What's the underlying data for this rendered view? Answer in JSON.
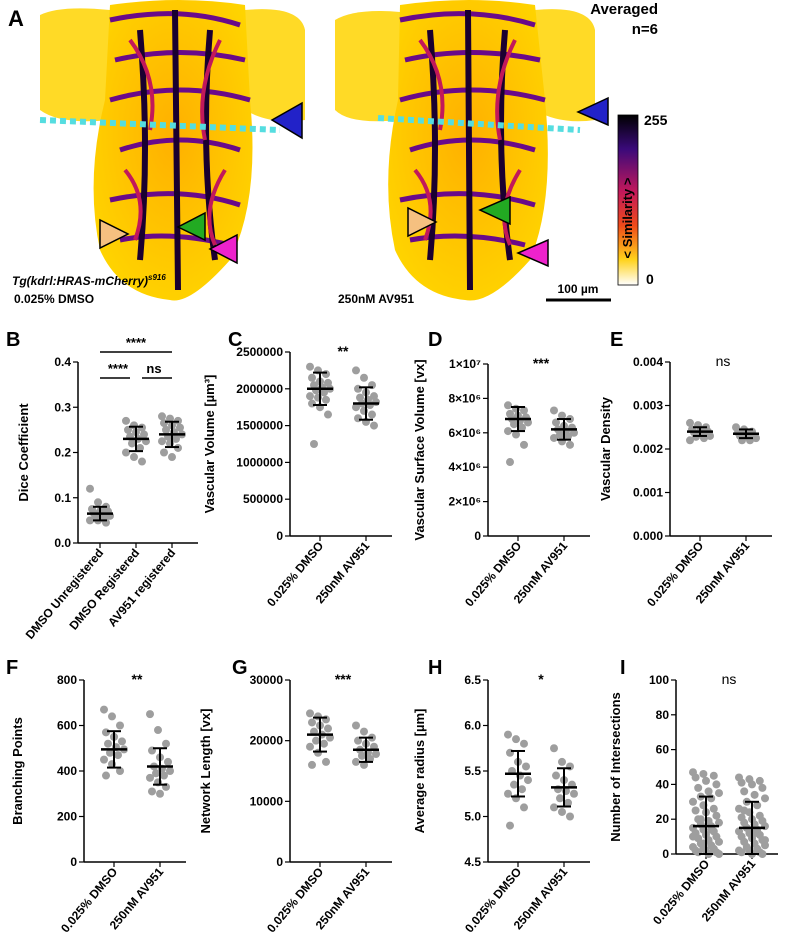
{
  "panel_a": {
    "letter": "A",
    "averaged_label": "Averaged",
    "n_label": "n=6",
    "colorbar": {
      "max": "255",
      "min": "0",
      "label": "< Similarity >"
    },
    "left_caption_line1": "Tg(kdrl:HRAS-mCherry)",
    "left_caption_sup": "s916",
    "left_caption_line2": "0.025% DMSO",
    "right_caption": "250nM AV951",
    "scalebar_label": "100 µm",
    "arrow_colors": {
      "blue": "#2222c8",
      "green": "#22aa22",
      "magenta": "#ee22cc",
      "peach": "#f5c080",
      "cyan_dash": "#55dde0"
    }
  },
  "chart_data": [
    {
      "panel": "B",
      "type": "scatter",
      "ylabel": "Dice Coefficient",
      "categories": [
        "DMSO Unregistered",
        "DMSO Registered",
        "AV951 registered"
      ],
      "ylim": [
        0,
        0.4
      ],
      "yticks": [
        "0.0",
        "0.1",
        "0.2",
        "0.3",
        "0.4"
      ],
      "means": [
        0.065,
        0.23,
        0.24
      ],
      "sd": [
        0.015,
        0.027,
        0.028
      ],
      "points": [
        [
          0.12,
          0.09,
          0.08,
          0.075,
          0.07,
          0.07,
          0.065,
          0.065,
          0.06,
          0.06,
          0.055,
          0.05,
          0.05,
          0.045
        ],
        [
          0.27,
          0.26,
          0.255,
          0.25,
          0.245,
          0.24,
          0.235,
          0.23,
          0.225,
          0.22,
          0.21,
          0.2,
          0.19,
          0.18
        ],
        [
          0.28,
          0.275,
          0.27,
          0.265,
          0.26,
          0.255,
          0.25,
          0.245,
          0.24,
          0.235,
          0.23,
          0.225,
          0.22,
          0.21,
          0.2,
          0.19
        ]
      ],
      "significance": [
        {
          "from": 0,
          "to": 2,
          "label": "****"
        },
        {
          "from": 0,
          "to": 1,
          "label": "****"
        },
        {
          "from": 1,
          "to": 2,
          "label": "ns"
        }
      ]
    },
    {
      "panel": "C",
      "type": "scatter",
      "ylabel": "Vascular Volume [µm³]",
      "categories": [
        "0.025% DMSO",
        "250nM AV951"
      ],
      "ylim": [
        0,
        2500000
      ],
      "yticks": [
        "0",
        "500000",
        "1000000",
        "1500000",
        "2000000",
        "2500000"
      ],
      "means": [
        2000000,
        1800000
      ],
      "sd": [
        220000,
        220000
      ],
      "points": [
        [
          2300000,
          2250000,
          2200000,
          2150000,
          2100000,
          2080000,
          2050000,
          2020000,
          2000000,
          1980000,
          1950000,
          1900000,
          1880000,
          1850000,
          1800000,
          1750000,
          1650000,
          1250000
        ],
        [
          2250000,
          2150000,
          2050000,
          2000000,
          1950000,
          1900000,
          1880000,
          1850000,
          1820000,
          1800000,
          1780000,
          1750000,
          1700000,
          1650000,
          1600000,
          1550000,
          1500000
        ]
      ],
      "significance": [
        {
          "label": "**"
        }
      ]
    },
    {
      "panel": "D",
      "type": "scatter",
      "ylabel": "Vascular Surface Volume [vx]",
      "categories": [
        "0.025% DMSO",
        "250nM AV951"
      ],
      "ylim": [
        0,
        10000000
      ],
      "yticks": [
        "0",
        "2×10⁶",
        "4×10⁶",
        "6×10⁶",
        "8×10⁶",
        "1×10⁷"
      ],
      "means": [
        6800000,
        6200000
      ],
      "sd": [
        700000,
        600000
      ],
      "points": [
        [
          7600000,
          7400000,
          7300000,
          7100000,
          7000000,
          6900000,
          6800000,
          6700000,
          6600000,
          6500000,
          6300000,
          6100000,
          5900000,
          5300000,
          4300000
        ],
        [
          7300000,
          7000000,
          6800000,
          6600000,
          6400000,
          6300000,
          6200000,
          6100000,
          6000000,
          5900000,
          5800000,
          5700000,
          5500000,
          5300000
        ]
      ],
      "significance": [
        {
          "label": "***"
        }
      ]
    },
    {
      "panel": "E",
      "type": "scatter",
      "ylabel": "Vascular Density",
      "categories": [
        "0.025% DMSO",
        "250nM AV951"
      ],
      "ylim": [
        0,
        0.004
      ],
      "yticks": [
        "0.000",
        "0.001",
        "0.002",
        "0.003",
        "0.004"
      ],
      "means": [
        0.0024,
        0.00235
      ],
      "sd": [
        0.0001,
        0.0001
      ],
      "points": [
        [
          0.0026,
          0.00255,
          0.0025,
          0.00245,
          0.0024,
          0.0024,
          0.00238,
          0.00235,
          0.0023,
          0.00228,
          0.00225,
          0.0022
        ],
        [
          0.0025,
          0.00245,
          0.0024,
          0.00238,
          0.00235,
          0.0023,
          0.0023,
          0.00228,
          0.00225,
          0.0022,
          0.0022
        ]
      ],
      "significance": [
        {
          "label": "ns"
        }
      ]
    },
    {
      "panel": "F",
      "type": "scatter",
      "ylabel": "Branching Points",
      "categories": [
        "0.025% DMSO",
        "250nM AV951"
      ],
      "ylim": [
        0,
        800
      ],
      "yticks": [
        "0",
        "200",
        "400",
        "600",
        "800"
      ],
      "means": [
        495,
        420
      ],
      "sd": [
        80,
        80
      ],
      "points": [
        [
          670,
          640,
          600,
          570,
          550,
          530,
          520,
          505,
          495,
          480,
          470,
          450,
          430,
          400,
          380
        ],
        [
          650,
          580,
          520,
          490,
          460,
          440,
          420,
          410,
          400,
          390,
          380,
          370,
          350,
          330,
          310,
          300
        ]
      ],
      "significance": [
        {
          "label": "**"
        }
      ]
    },
    {
      "panel": "G",
      "type": "scatter",
      "ylabel": "Network Length [vx]",
      "categories": [
        "0.025% DMSO",
        "250nM AV951"
      ],
      "ylim": [
        0,
        30000
      ],
      "yticks": [
        "0",
        "10000",
        "20000",
        "30000"
      ],
      "means": [
        21000,
        18500
      ],
      "sd": [
        2800,
        2000
      ],
      "points": [
        [
          24500,
          24000,
          23500,
          23000,
          22500,
          22000,
          21500,
          21000,
          20500,
          20000,
          19500,
          19000,
          18000,
          16500,
          16000
        ],
        [
          22500,
          21500,
          20500,
          20000,
          19500,
          19000,
          18500,
          18000,
          17800,
          17500,
          17000,
          16500,
          16000
        ]
      ],
      "significance": [
        {
          "label": "***"
        }
      ]
    },
    {
      "panel": "H",
      "type": "scatter",
      "ylabel": "Average radius [µm]",
      "categories": [
        "0.025% DMSO",
        "250nM AV951"
      ],
      "ylim": [
        4.5,
        6.5
      ],
      "yticks": [
        "4.5",
        "5.0",
        "5.5",
        "6.0",
        "6.5"
      ],
      "means": [
        5.47,
        5.32
      ],
      "sd": [
        0.25,
        0.21
      ],
      "points": [
        [
          5.9,
          5.85,
          5.8,
          5.7,
          5.6,
          5.55,
          5.5,
          5.45,
          5.4,
          5.35,
          5.3,
          5.25,
          5.2,
          5.1,
          4.9
        ],
        [
          5.75,
          5.6,
          5.55,
          5.45,
          5.4,
          5.35,
          5.3,
          5.28,
          5.25,
          5.2,
          5.15,
          5.1,
          5.05,
          5.0
        ]
      ],
      "significance": [
        {
          "label": "*"
        }
      ]
    },
    {
      "panel": "I",
      "type": "scatter",
      "ylabel": "Number of Intersections",
      "categories": [
        "0.025% DMSO",
        "250nM AV951"
      ],
      "ylim": [
        0,
        100
      ],
      "yticks": [
        "0",
        "20",
        "40",
        "60",
        "80",
        "100"
      ],
      "means": [
        16,
        15
      ],
      "sd": [
        17,
        15
      ],
      "points": [
        [
          47,
          46,
          45,
          44,
          42,
          40,
          38,
          36,
          35,
          33,
          32,
          30,
          28,
          26,
          25,
          24,
          22,
          20,
          19,
          18,
          17,
          16,
          15,
          14,
          13,
          12,
          11,
          10,
          9,
          8,
          7,
          6,
          5,
          4,
          3,
          3,
          2,
          2,
          1,
          1,
          0,
          0,
          20,
          14,
          10,
          6
        ],
        [
          44,
          43,
          42,
          41,
          40,
          38,
          36,
          34,
          32,
          30,
          28,
          26,
          24,
          22,
          21,
          20,
          19,
          18,
          17,
          16,
          15,
          14,
          13,
          12,
          11,
          10,
          9,
          8,
          7,
          6,
          5,
          4,
          3,
          2,
          2,
          1,
          1,
          0,
          0,
          25,
          12,
          8
        ]
      ],
      "significance": [
        {
          "label": "ns"
        }
      ]
    }
  ]
}
